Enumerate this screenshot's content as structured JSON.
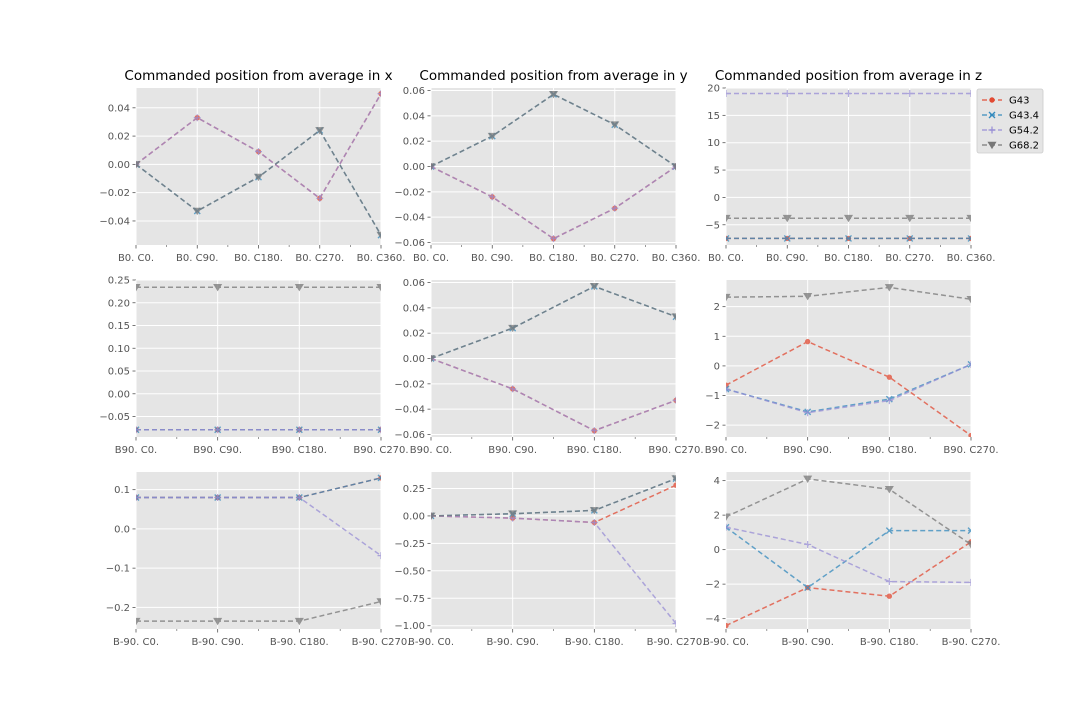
{
  "legend": {
    "placement": "upper-right-outside",
    "entries": [
      {
        "name": "G43",
        "color": "#E24A33",
        "marker": "point"
      },
      {
        "name": "G43.4",
        "color": "#348ABD",
        "marker": "x"
      },
      {
        "name": "G54.2",
        "color": "#988ED5",
        "marker": "plus"
      },
      {
        "name": "G68.2",
        "color": "#777777",
        "marker": "triangle-down"
      }
    ]
  },
  "chart_data": [
    {
      "type": "line",
      "title": "Commanded position from average in x",
      "categories": [
        "B0. C0.",
        "B0. C90.",
        "B0. C180.",
        "B0. C270.",
        "B0. C360."
      ],
      "ylim": [
        -0.057,
        0.054
      ],
      "yticks": [
        -0.04,
        -0.02,
        0.0,
        0.02,
        0.04
      ],
      "ytick_labels": [
        "−0.04",
        "−0.02",
        "0.00",
        "0.02",
        "0.04"
      ],
      "grid": true,
      "series": [
        {
          "name": "G43",
          "values": [
            0.0,
            0.033,
            0.009,
            -0.024,
            0.05
          ]
        },
        {
          "name": "G43.4",
          "values": [
            0.0,
            -0.033,
            -0.009,
            0.024,
            -0.05
          ]
        },
        {
          "name": "G54.2",
          "values": [
            0.0,
            0.033,
            0.009,
            -0.024,
            0.05
          ]
        },
        {
          "name": "G68.2",
          "values": [
            0.0,
            -0.033,
            -0.009,
            0.024,
            -0.05
          ]
        }
      ]
    },
    {
      "type": "line",
      "title": "Commanded position from average in y",
      "categories": [
        "B0. C0.",
        "B0. C90.",
        "B0. C180.",
        "B0. C270.",
        "B0. C360."
      ],
      "ylim": [
        -0.062,
        0.062
      ],
      "yticks": [
        -0.06,
        -0.04,
        -0.02,
        0.0,
        0.02,
        0.04,
        0.06
      ],
      "ytick_labels": [
        "−0.06",
        "−0.04",
        "−0.02",
        "0.00",
        "0.02",
        "0.04",
        "0.06"
      ],
      "grid": true,
      "series": [
        {
          "name": "G43",
          "values": [
            0.0,
            -0.024,
            -0.057,
            -0.033,
            0.0
          ]
        },
        {
          "name": "G43.4",
          "values": [
            0.0,
            0.024,
            0.057,
            0.033,
            0.0
          ]
        },
        {
          "name": "G54.2",
          "values": [
            0.0,
            -0.024,
            -0.057,
            -0.033,
            0.0
          ]
        },
        {
          "name": "G68.2",
          "values": [
            0.0,
            0.024,
            0.057,
            0.033,
            0.0
          ]
        }
      ]
    },
    {
      "type": "line",
      "title": "Commanded position from average in z",
      "categories": [
        "B0. C0.",
        "B0. C90.",
        "B0. C180.",
        "B0. C270.",
        "B0. C360."
      ],
      "ylim": [
        -8.7,
        20.0
      ],
      "yticks": [
        -5,
        0,
        5,
        10,
        15,
        20
      ],
      "ytick_labels": [
        "−5",
        "0",
        "5",
        "10",
        "15",
        "20"
      ],
      "grid": true,
      "series": [
        {
          "name": "G43",
          "values": [
            -7.5,
            -7.5,
            -7.5,
            -7.5,
            -7.5
          ]
        },
        {
          "name": "G43.4",
          "values": [
            -7.5,
            -7.5,
            -7.5,
            -7.5,
            -7.5
          ]
        },
        {
          "name": "G54.2",
          "values": [
            19.0,
            19.0,
            19.0,
            19.0,
            19.0
          ]
        },
        {
          "name": "G68.2",
          "values": [
            -3.8,
            -3.8,
            -3.8,
            -3.8,
            -3.8
          ]
        }
      ]
    },
    {
      "type": "line",
      "title": "",
      "categories": [
        "B90. C0.",
        "B90. C90.",
        "B90. C180.",
        "B90. C270."
      ],
      "ylim": [
        -0.095,
        0.25
      ],
      "yticks": [
        -0.05,
        0.0,
        0.05,
        0.1,
        0.15,
        0.2,
        0.25
      ],
      "ytick_labels": [
        "−0.05",
        "0.00",
        "0.05",
        "0.10",
        "0.15",
        "0.20",
        "0.25"
      ],
      "grid": true,
      "series": [
        {
          "name": "G43",
          "values": [
            -0.079,
            -0.079,
            -0.079,
            -0.079
          ]
        },
        {
          "name": "G43.4",
          "values": [
            -0.079,
            -0.079,
            -0.079,
            -0.079
          ]
        },
        {
          "name": "G54.2",
          "values": [
            -0.079,
            -0.079,
            -0.079,
            -0.079
          ]
        },
        {
          "name": "G68.2",
          "values": [
            0.234,
            0.234,
            0.234,
            0.234
          ]
        }
      ]
    },
    {
      "type": "line",
      "title": "",
      "categories": [
        "B90. C0.",
        "B90. C90.",
        "B90. C180.",
        "B90. C270."
      ],
      "ylim": [
        -0.062,
        0.062
      ],
      "yticks": [
        -0.06,
        -0.04,
        -0.02,
        0.0,
        0.02,
        0.04,
        0.06
      ],
      "ytick_labels": [
        "−0.06",
        "−0.04",
        "−0.02",
        "0.00",
        "0.02",
        "0.04",
        "0.06"
      ],
      "grid": true,
      "series": [
        {
          "name": "G43",
          "values": [
            0.0,
            -0.024,
            -0.057,
            -0.033
          ]
        },
        {
          "name": "G43.4",
          "values": [
            0.0,
            0.024,
            0.057,
            0.033
          ]
        },
        {
          "name": "G54.2",
          "values": [
            0.0,
            -0.024,
            -0.057,
            -0.033
          ]
        },
        {
          "name": "G68.2",
          "values": [
            0.0,
            0.024,
            0.057,
            0.033
          ]
        }
      ]
    },
    {
      "type": "line",
      "title": "",
      "categories": [
        "B90. C0.",
        "B90. C90.",
        "B90. C180.",
        "B90. C270."
      ],
      "ylim": [
        -2.4,
        2.9
      ],
      "yticks": [
        -2,
        -1,
        0,
        1,
        2
      ],
      "ytick_labels": [
        "−2",
        "−1",
        "0",
        "1",
        "2"
      ],
      "grid": true,
      "series": [
        {
          "name": "G43",
          "values": [
            -0.65,
            0.82,
            -0.38,
            -2.35
          ]
        },
        {
          "name": "G43.4",
          "values": [
            -0.78,
            -1.55,
            -1.12,
            0.05
          ]
        },
        {
          "name": "G54.2",
          "values": [
            -0.78,
            -1.58,
            -1.17,
            0.05
          ]
        },
        {
          "name": "G68.2",
          "values": [
            2.32,
            2.35,
            2.65,
            2.25
          ]
        }
      ]
    },
    {
      "type": "line",
      "title": "",
      "categories": [
        "B-90. C0.",
        "B-90. C90.",
        "B-90. C180.",
        "B-90. C270."
      ],
      "ylim": [
        -0.255,
        0.145
      ],
      "yticks": [
        -0.2,
        -0.1,
        0.0,
        0.1
      ],
      "ytick_labels": [
        "−0.2",
        "−0.1",
        "0.0",
        "0.1"
      ],
      "grid": true,
      "series": [
        {
          "name": "G43",
          "values": [
            0.08,
            0.08,
            0.08,
            0.13
          ]
        },
        {
          "name": "G43.4",
          "values": [
            0.08,
            0.08,
            0.08,
            0.13
          ]
        },
        {
          "name": "G54.2",
          "values": [
            0.08,
            0.08,
            0.08,
            -0.068
          ]
        },
        {
          "name": "G68.2",
          "values": [
            -0.235,
            -0.235,
            -0.235,
            -0.185
          ]
        }
      ]
    },
    {
      "type": "line",
      "title": "",
      "categories": [
        "B-90. C0.",
        "B-90. C90.",
        "B-90. C180.",
        "B-90. C270."
      ],
      "ylim": [
        -1.03,
        0.4
      ],
      "yticks": [
        -1.0,
        -0.75,
        -0.5,
        -0.25,
        0.0,
        0.25
      ],
      "ytick_labels": [
        "−1.00",
        "−0.75",
        "−0.50",
        "−0.25",
        "0.00",
        "0.25"
      ],
      "grid": true,
      "series": [
        {
          "name": "G43",
          "values": [
            0.0,
            -0.02,
            -0.06,
            0.28
          ]
        },
        {
          "name": "G43.4",
          "values": [
            0.0,
            0.02,
            0.05,
            0.34
          ]
        },
        {
          "name": "G54.2",
          "values": [
            0.0,
            -0.02,
            -0.06,
            -0.98
          ]
        },
        {
          "name": "G68.2",
          "values": [
            0.0,
            0.02,
            0.05,
            0.34
          ]
        }
      ]
    },
    {
      "type": "line",
      "title": "",
      "categories": [
        "B-90. C0.",
        "B-90. C90.",
        "B-90. C180.",
        "B-90. C270."
      ],
      "ylim": [
        -4.6,
        4.5
      ],
      "yticks": [
        -4,
        -2,
        0,
        2,
        4
      ],
      "ytick_labels": [
        "−4",
        "−2",
        "0",
        "2",
        "4"
      ],
      "grid": true,
      "series": [
        {
          "name": "G43",
          "values": [
            -4.4,
            -2.2,
            -2.7,
            0.45
          ]
        },
        {
          "name": "G43.4",
          "values": [
            1.3,
            -2.2,
            1.1,
            1.1
          ]
        },
        {
          "name": "G54.2",
          "values": [
            1.3,
            0.3,
            -1.85,
            -1.9
          ]
        },
        {
          "name": "G68.2",
          "values": [
            1.9,
            4.1,
            3.5,
            0.3
          ]
        }
      ]
    }
  ]
}
